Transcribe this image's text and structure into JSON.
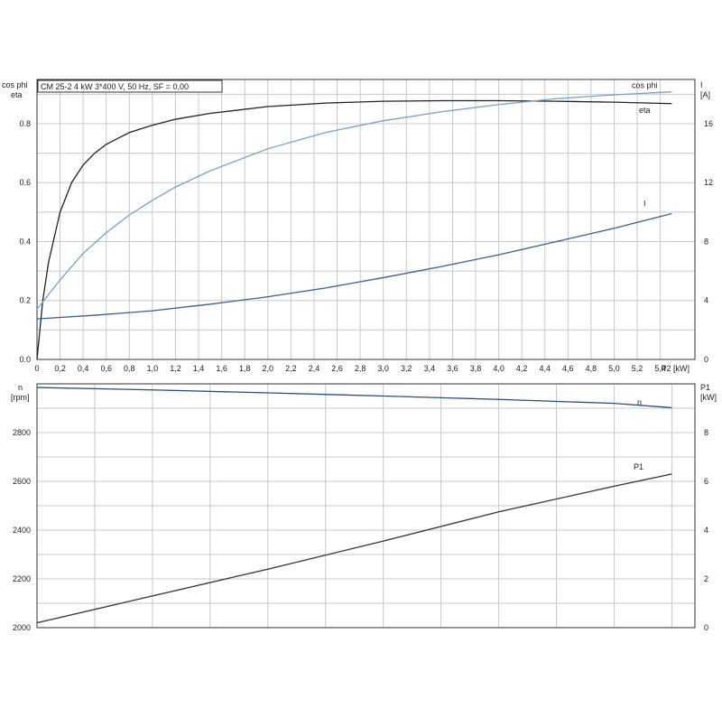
{
  "chart_data": [
    {
      "type": "line",
      "title": "CM 25-2   4 kW   3*400 V, 50 Hz, SF = 0,00",
      "xlabel": "P2 [kW]",
      "ylabel_left": [
        "cos phi",
        "eta"
      ],
      "ylabel_right": [
        "I",
        "[A]"
      ],
      "xlim": [
        0,
        5.7
      ],
      "ylim_left": [
        0,
        0.95
      ],
      "ylim_right": [
        0,
        19
      ],
      "x_ticks": [
        "0",
        "0,2",
        "0,4",
        "0,6",
        "0,8",
        "1,0",
        "1,2",
        "1,4",
        "1,6",
        "1,8",
        "2,0",
        "2,2",
        "2,4",
        "2,6",
        "2,8",
        "3,0",
        "3,2",
        "3,4",
        "3,6",
        "3,8",
        "4,0",
        "4,2",
        "4,4",
        "4,6",
        "4,8",
        "5,0",
        "5,2",
        "5,4"
      ],
      "x_tick_values": [
        0,
        0.2,
        0.4,
        0.6,
        0.8,
        1.0,
        1.2,
        1.4,
        1.6,
        1.8,
        2.0,
        2.2,
        2.4,
        2.6,
        2.8,
        3.0,
        3.2,
        3.4,
        3.6,
        3.8,
        4.0,
        4.2,
        4.4,
        4.6,
        4.8,
        5.0,
        5.2,
        5.4
      ],
      "y_left_ticks": [
        "0.0",
        "0.2",
        "0.4",
        "0.6",
        "0.8"
      ],
      "y_left_tick_values": [
        0,
        0.2,
        0.4,
        0.6,
        0.8
      ],
      "y_right_ticks": [
        "0",
        "4",
        "8",
        "12",
        "16"
      ],
      "y_right_tick_values": [
        0,
        4,
        8,
        12,
        16
      ],
      "grid": true,
      "series": [
        {
          "name": "eta",
          "axis": "left",
          "color": "#222222",
          "x": [
            0,
            0.05,
            0.1,
            0.2,
            0.3,
            0.4,
            0.5,
            0.6,
            0.8,
            1.0,
            1.2,
            1.5,
            2.0,
            2.5,
            3.0,
            3.5,
            4.0,
            4.5,
            5.0,
            5.5
          ],
          "y": [
            0,
            0.2,
            0.33,
            0.5,
            0.6,
            0.66,
            0.7,
            0.73,
            0.77,
            0.795,
            0.815,
            0.835,
            0.858,
            0.87,
            0.876,
            0.878,
            0.878,
            0.876,
            0.873,
            0.868
          ]
        },
        {
          "name": "cos phi",
          "axis": "left",
          "color": "#7aa0c8",
          "x": [
            0,
            0.2,
            0.4,
            0.6,
            0.8,
            1.0,
            1.2,
            1.5,
            2.0,
            2.5,
            3.0,
            3.5,
            4.0,
            4.5,
            5.0,
            5.5
          ],
          "y": [
            0.17,
            0.27,
            0.36,
            0.43,
            0.49,
            0.54,
            0.585,
            0.64,
            0.715,
            0.77,
            0.81,
            0.84,
            0.865,
            0.885,
            0.898,
            0.908
          ]
        },
        {
          "name": "I",
          "axis": "right",
          "color": "#3c5f8a",
          "x": [
            0,
            0.5,
            1.0,
            1.5,
            2.0,
            2.5,
            3.0,
            3.5,
            4.0,
            4.5,
            5.0,
            5.5
          ],
          "y": [
            2.75,
            3.0,
            3.3,
            3.75,
            4.25,
            4.85,
            5.55,
            6.3,
            7.1,
            8.0,
            8.9,
            9.9
          ]
        }
      ]
    },
    {
      "type": "line",
      "xlim": [
        0,
        5.7
      ],
      "ylabel_left": [
        "n",
        "[rpm]"
      ],
      "ylabel_right": [
        "P1",
        "[kW]"
      ],
      "ylim_left": [
        2000,
        3000
      ],
      "ylim_right": [
        0,
        10
      ],
      "y_left_ticks": [
        "2000",
        "2200",
        "2400",
        "2600",
        "2800"
      ],
      "y_left_tick_values": [
        2000,
        2200,
        2400,
        2600,
        2800
      ],
      "y_right_ticks": [
        "0",
        "2",
        "4",
        "6",
        "8"
      ],
      "y_right_tick_values": [
        0,
        2,
        4,
        6,
        8
      ],
      "grid": true,
      "series": [
        {
          "name": "n",
          "axis": "left",
          "color": "#2e4d7a",
          "x": [
            0,
            1.0,
            2.0,
            3.0,
            4.0,
            5.0,
            5.5
          ],
          "y": [
            2985,
            2975,
            2963,
            2950,
            2936,
            2920,
            2902
          ]
        },
        {
          "name": "P1",
          "axis": "right",
          "color": "#333333",
          "x": [
            0,
            1.0,
            2.0,
            3.0,
            4.0,
            5.0,
            5.5
          ],
          "y": [
            0.2,
            1.3,
            2.4,
            3.55,
            4.75,
            5.8,
            6.3
          ]
        }
      ]
    }
  ]
}
